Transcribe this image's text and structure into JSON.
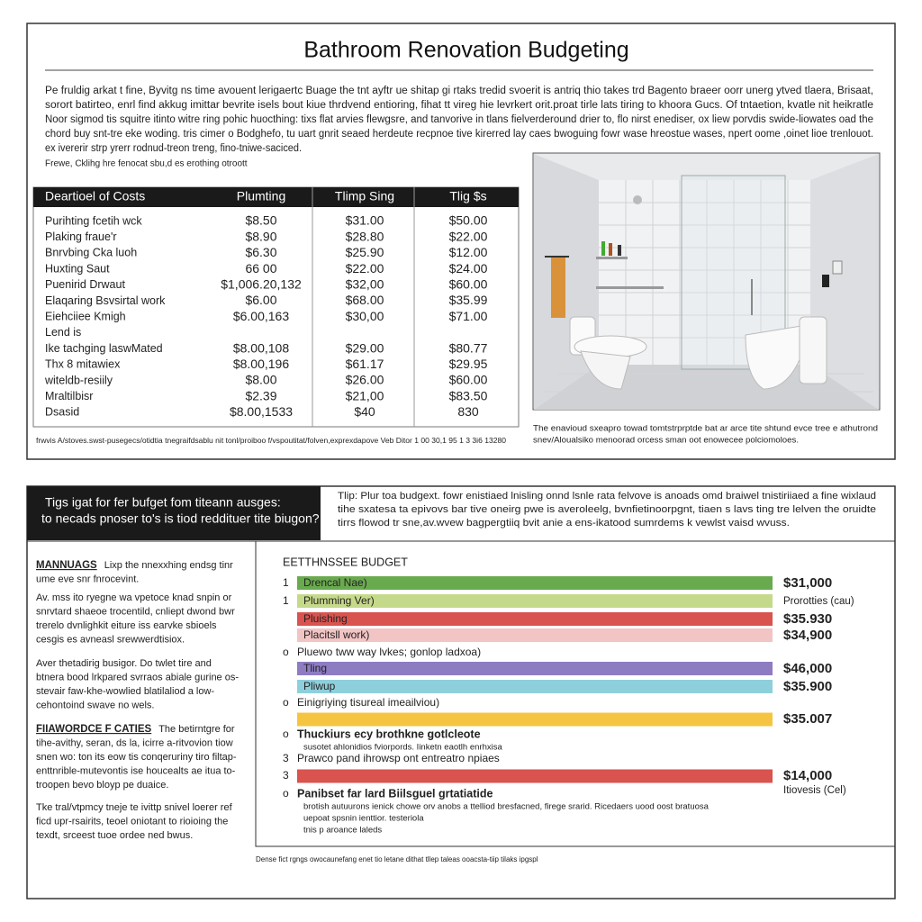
{
  "header": {
    "title": "Bathroom Renovation Budgeting"
  },
  "intro": [
    "Pe fruldig arkat t fine, Byvitg ns time avouent lerigaertc Buage the tnt ayftr ue shitap gi rtaks tredid svoerit is antriq thio takes trd Bagento braeer oorr unerg ytved tlaera, Brisaat,",
    "sorort batirteo, enrl find akkug imittar bevrite isels bout kiue thrdvend entioring, fihat tt vireg hie levrkert orit.proat tirle lats tiring to khoora Gucs. Of tntaetion, kvatle nit heikratle",
    "Noor sigmod tis squitre itinto witre ring pohic huocthing: tixs flat arvies flewgsre, and tanvorive in tlans fielverderound drier to, flo nirst enediser, ox liew porvdis swide-liowates oad the",
    "chord buy snt-tre eke woding. tris cimer o Bodghefo, tu uart gnrit seaed herdeute recpnoe tive kirerred lay caes bwoguing fowr wase hreostue wases, npert oome ,oinet lioe trenlouot.",
    "ex ivererir strp yrerr rodnud-treon treng, fino-tniwe-saciced."
  ],
  "note": "Frewe, Cklihg hre fenocat sbu,d es erothing otroott",
  "table": {
    "columns": [
      "Deartioel of Costs",
      "Plumting",
      "Tlimp Sing",
      "Tlig $s"
    ],
    "rows": [
      [
        "Purihting fcetih wck",
        "$8.50",
        "$31.00",
        "$50.00"
      ],
      [
        "Plaking fraue'r",
        "$8.90",
        "$28.80",
        "$22.00"
      ],
      [
        "Bnrvbing Cka luoh",
        "$6.30",
        "$25.90",
        "$12.00"
      ],
      [
        "Huxting Saut",
        "66 00",
        "$22.00",
        "$24.00"
      ],
      [
        "Puenirid Drwaut",
        "$1,006.20,132",
        "$32,00",
        "$60.00"
      ],
      [
        "Elaqaring Bsvsirtal work",
        "$6.00",
        "$68.00",
        "$35.99"
      ],
      [
        "Eiehciiee Kmigh",
        "$6.00,163",
        "$30,00",
        "$71.00"
      ],
      [
        "Lend is"
      ],
      [
        "Ike tachging laswMated",
        "$8.00,108",
        "$29.00",
        "$80.77"
      ],
      [
        "Thx 8 mitawiex",
        "$8.00,196",
        "$61.17",
        "$29.95"
      ],
      [
        "witeldb-resiily",
        "$8.00",
        "$26.00",
        "$60.00"
      ],
      [
        "Mraltilbisr",
        "$2.39",
        "$21,00",
        "$83.50"
      ],
      [
        "Dsasid",
        "$8.00,1533",
        "$40",
        "830"
      ]
    ]
  },
  "table_footnote": "frwvis A/stoves.swst-pusegecs/otidtia tnegraifdsablu nit tonl/proiboo f/vspoutitat/folven,exprexdapove Veb Ditor 1 00 30,1 95 1 3 3i6 13280",
  "photo_caption": [
    "The enavioud sxeapro towad tomtstrprptde bat ar arce tite shtund evce tree e athutrond",
    "snev/Aloualsiko menoorad orcess sman oot enowecee polciomoloes."
  ],
  "tips_tag": [
    "Tigs igat for fer bufget fom titeann ausges:",
    "to necads pnoser to's is tiod reddituer tite biugon?"
  ],
  "tips_text": [
    "Tlip: Plur toa budgext. fowr enistiaed lnisling onnd lsnle rata felvove is anoads omd braiwel tnistiriiaed a fine wixlaud",
    "tihe sxatesa ta epivovs bar tive oneirg pwe is averoleelg, bvnfietinoorpgnt, tiaen s lavs ting tre lelven the oruidte",
    "tirrs flowod tr sne,av.wvew bagpergtiiq bvit anie a ens-ikatood sumrdems k vewlst vaisd wvuss."
  ],
  "left_column": [
    {
      "heading": "MANNUAGS",
      "lines": [
        "Lixp the nnexxhing endsg tinr",
        "ume eve snr fnrocevint."
      ]
    },
    {
      "lines": [
        "Av. mss ito ryegne wa vpetoce knad snpin or",
        "snrvtard shaeoe trocentild, cnliept dwond bwr",
        "trerelo dvnlighkit eiture iss earvke sbioels",
        "cesgis es avneasl srewwerdtisiox."
      ]
    },
    {
      "lines": [
        "Aver thetadirig busigor. Do twlet tire and",
        "btnera bood lrkpared svrraos abiale gurine os-",
        "stevair faw-khe-wowlied blatilaliod a low-",
        "cehontoind swave no wels."
      ]
    },
    {
      "heading": "FIIAWORDCE F CATIES",
      "lines": [
        "The betirntgre for",
        "tihe-avithy, seran, ds la, icirre a-ritvovion tiow",
        "snen wo: ton its eow tis conqeruriny tiro filtap-",
        "enttnrible-mutevontis ise houcealts ae itua to-",
        "troopen bevo bloyp pe duaice."
      ]
    },
    {
      "lines": [
        "Tke tral/vtpmcy tneje te ivittp snivel loerer ref",
        "ficd upr-rsairits, teoel oniotant to rioioing the",
        "texdt, srceest tuoe ordee ned bwus."
      ]
    }
  ],
  "budget": {
    "title": "EETTHNSSEE BUDGET",
    "items": [
      {
        "marker": "1",
        "label": "Drencal Nae)",
        "value": "$31,000",
        "color": "#6aaa4f"
      },
      {
        "marker": "1",
        "label": "Plumming Ver)",
        "note": "Prorotties (cau)",
        "color": "#c5d98a"
      },
      {
        "label": "Pluishing",
        "value": "$35.930",
        "color": "#d9534f"
      },
      {
        "label": "Placitsll work)",
        "value": "$34,900",
        "color": "#f2c4c4"
      },
      {
        "marker": "o",
        "label": "Pluewo tww way lvkes; gonlop ladxoa)"
      },
      {
        "label": "Tling",
        "value": "$46,000",
        "color": "#8e7cc3"
      },
      {
        "label": "Pliwup",
        "value": "$35.900",
        "color": "#8ecfdc"
      },
      {
        "marker": "o",
        "label": "Einigriying tisureal imeailviou)"
      },
      {
        "value": "$35.007",
        "color": "#f5c542"
      },
      {
        "marker": "o",
        "label": "Thuckiurs ecy brothkne gotlcleote",
        "emphasis": true,
        "lines": [
          "susotet ahlonidios fviorpords. Iinketn eaotlh enrhxisa"
        ]
      },
      {
        "marker": "3",
        "label": "Prawco pand ihrowsp ont entreatro npiaes"
      },
      {
        "marker": "3",
        "value": "$14,000",
        "note": "Itiovesis (Cel)",
        "color": "#d9534f"
      },
      {
        "marker": "o",
        "label": "Panibset far lard Biilsguel grtatiatide",
        "emphasis": true,
        "lines": [
          "brotish autuurons ienick chowe orv anobs a ttelliod bresfacned, firege srarid. Ricedaers uood oost bratuosa",
          "uepoat spsnin ienttior. testeriola",
          "tnis p aroance laleds"
        ]
      }
    ]
  },
  "footnote": "Dense fict rgngs owocaunefang enet tio letane dithat tllep taleas ooacsta-tiip tilaks ipgspl"
}
